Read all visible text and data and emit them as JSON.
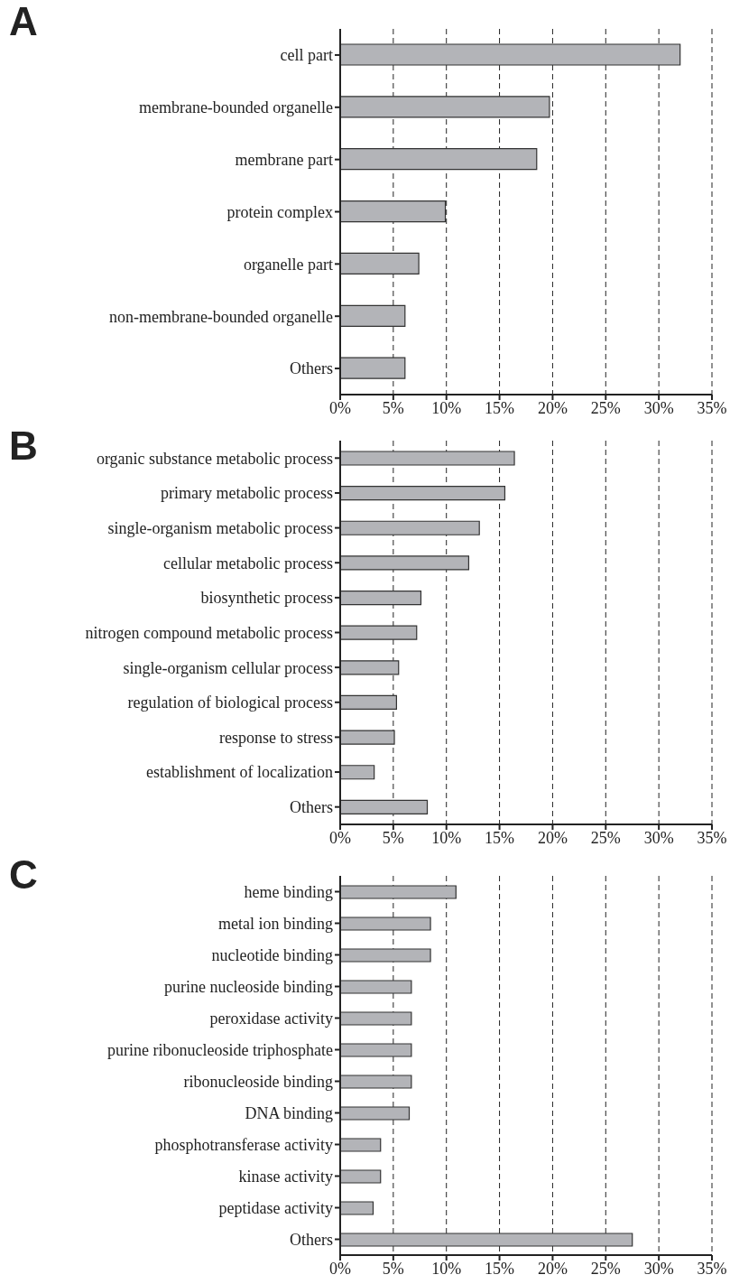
{
  "chart_data": [
    {
      "type": "bar",
      "title": "A",
      "orientation": "horizontal",
      "categories": [
        "cell part",
        "membrane-bounded organelle",
        "membrane part",
        "protein complex",
        "organelle part",
        "non-membrane-bounded organelle",
        "Others"
      ],
      "values": [
        32.0,
        19.7,
        18.5,
        9.9,
        7.4,
        6.1,
        6.1
      ],
      "color": "#b3b4b8",
      "xlim": [
        0,
        35
      ],
      "xticks": [
        {
          "value": 0,
          "label": "0%"
        },
        {
          "value": 5,
          "label": "5%"
        },
        {
          "value": 10,
          "label": "10%"
        },
        {
          "value": 15,
          "label": "15%"
        },
        {
          "value": 20,
          "label": "20%"
        },
        {
          "value": 25,
          "label": "25%"
        },
        {
          "value": 30,
          "label": "30%"
        },
        {
          "value": 35,
          "label": "35%"
        }
      ],
      "grid": "x"
    },
    {
      "type": "bar",
      "title": "B",
      "orientation": "horizontal",
      "categories": [
        "organic substance metabolic process",
        "primary metabolic process",
        "single-organism metabolic process",
        "cellular metabolic process",
        "biosynthetic process",
        "nitrogen compound metabolic process",
        "single-organism cellular process",
        "regulation of biological process",
        "response to stress",
        "establishment of localization",
        "Others"
      ],
      "values": [
        16.4,
        15.5,
        13.1,
        12.1,
        7.6,
        7.2,
        5.5,
        5.3,
        5.1,
        3.2,
        8.2
      ],
      "color": "#b3b4b8",
      "xlim": [
        0,
        35
      ],
      "xticks": [
        {
          "value": 0,
          "label": "0%"
        },
        {
          "value": 5,
          "label": "5%"
        },
        {
          "value": 10,
          "label": "10%"
        },
        {
          "value": 15,
          "label": "15%"
        },
        {
          "value": 20,
          "label": "20%"
        },
        {
          "value": 25,
          "label": "25%"
        },
        {
          "value": 30,
          "label": "30%"
        },
        {
          "value": 35,
          "label": "35%"
        }
      ],
      "grid": "x"
    },
    {
      "type": "bar",
      "title": "C",
      "orientation": "horizontal",
      "categories": [
        "heme binding",
        "metal ion binding",
        "nucleotide binding",
        "purine nucleoside binding",
        "peroxidase activity",
        "purine ribonucleoside triphosphate",
        "ribonucleoside binding",
        "DNA binding",
        "phosphotransferase activity",
        "kinase activity",
        "peptidase activity",
        "Others"
      ],
      "values": [
        10.9,
        8.5,
        8.5,
        6.7,
        6.7,
        6.7,
        6.7,
        6.5,
        3.8,
        3.8,
        3.1,
        27.5
      ],
      "color": "#b3b4b8",
      "xlim": [
        0,
        35
      ],
      "xticks": [
        {
          "value": 0,
          "label": "0%"
        },
        {
          "value": 5,
          "label": "5%"
        },
        {
          "value": 10,
          "label": "10%"
        },
        {
          "value": 15,
          "label": "15%"
        },
        {
          "value": 20,
          "label": "20%"
        },
        {
          "value": 25,
          "label": "25%"
        },
        {
          "value": 30,
          "label": "30%"
        },
        {
          "value": 35,
          "label": "35%"
        }
      ],
      "grid": "x"
    }
  ]
}
